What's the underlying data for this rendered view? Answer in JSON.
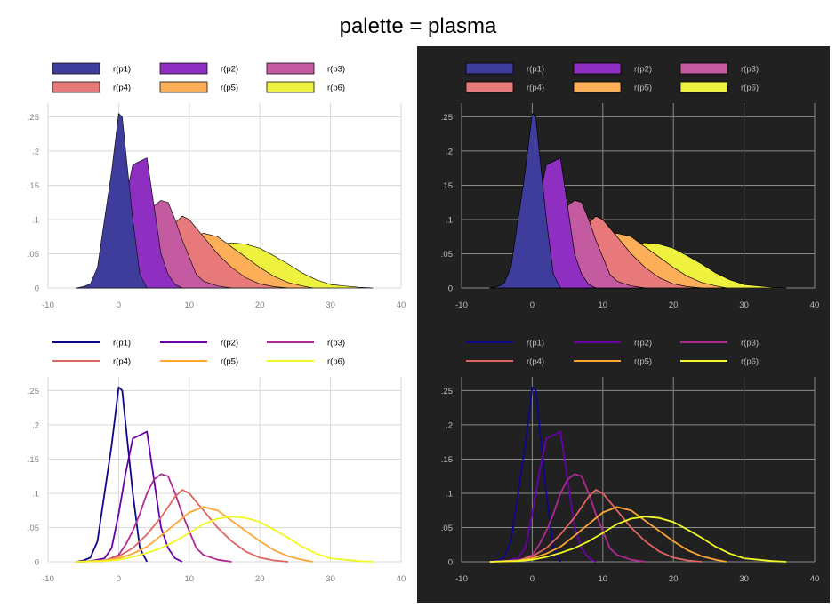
{
  "title": "palette = plasma",
  "themes": {
    "light": {
      "bg": "#ffffff",
      "grid": "#d9d9d9",
      "tick_text": "#808080",
      "legend_text": "#000000",
      "fill_stroke": "#111111"
    },
    "dark": {
      "bg": "#212121",
      "grid": "#8a8a8a",
      "tick_text": "#bdbdbd",
      "legend_text": "#bdbdbd",
      "fill_stroke": "#000000"
    }
  },
  "chart_data": [
    {
      "panel": "top-left",
      "type": "area",
      "theme": "light",
      "legend_style": "box",
      "legend_position": "top",
      "xlim": [
        -10,
        40
      ],
      "ylim": [
        0,
        0.27
      ],
      "xticks": [
        -10,
        0,
        10,
        20,
        30,
        40
      ],
      "xtick_labels": [
        "-10",
        "0",
        "10",
        "20",
        "30",
        "40"
      ],
      "yticks": [
        0,
        0.05,
        0.1,
        0.15,
        0.2,
        0.25
      ],
      "ytick_labels": [
        "0",
        ".05",
        ".1",
        ".15",
        ".2",
        ".25"
      ],
      "grid": true,
      "series": "shared"
    },
    {
      "panel": "top-right",
      "type": "area",
      "theme": "dark",
      "legend_style": "box",
      "legend_position": "top",
      "xlim": [
        -10,
        40
      ],
      "ylim": [
        0,
        0.27
      ],
      "xticks": [
        -10,
        0,
        10,
        20,
        30,
        40
      ],
      "xtick_labels": [
        "-10",
        "0",
        "10",
        "20",
        "30",
        "40"
      ],
      "yticks": [
        0,
        0.05,
        0.1,
        0.15,
        0.2,
        0.25
      ],
      "ytick_labels": [
        "0",
        ".05",
        ".1",
        ".15",
        ".2",
        ".25"
      ],
      "grid": true,
      "series": "shared"
    },
    {
      "panel": "bottom-left",
      "type": "line",
      "theme": "light",
      "legend_style": "line",
      "legend_position": "top",
      "xlim": [
        -10,
        40
      ],
      "ylim": [
        0,
        0.27
      ],
      "xticks": [
        -10,
        0,
        10,
        20,
        30,
        40
      ],
      "xtick_labels": [
        "-10",
        "0",
        "10",
        "20",
        "30",
        "40"
      ],
      "yticks": [
        0,
        0.05,
        0.1,
        0.15,
        0.2,
        0.25
      ],
      "ytick_labels": [
        "0",
        ".05",
        ".1",
        ".15",
        ".2",
        ".25"
      ],
      "grid": true,
      "series": "shared"
    },
    {
      "panel": "bottom-right",
      "type": "line",
      "theme": "dark",
      "legend_style": "line",
      "legend_position": "top",
      "xlim": [
        -10,
        40
      ],
      "ylim": [
        0,
        0.27
      ],
      "xticks": [
        -10,
        0,
        10,
        20,
        30,
        40
      ],
      "xtick_labels": [
        "-10",
        "0",
        "10",
        "20",
        "30",
        "40"
      ],
      "yticks": [
        0,
        0.05,
        0.1,
        0.15,
        0.2,
        0.25
      ],
      "ytick_labels": [
        "0",
        ".05",
        ".1",
        ".15",
        ".2",
        ".25"
      ],
      "grid": true,
      "series": "shared"
    }
  ],
  "series": [
    {
      "name": "r(p1)",
      "fill": "#3f3d9c",
      "line": "#0d0887",
      "x": [
        -6,
        -5,
        -4,
        -3,
        -2,
        -1,
        0,
        0.5,
        1,
        2,
        3,
        4
      ],
      "y": [
        0,
        0.002,
        0.006,
        0.03,
        0.1,
        0.17,
        0.255,
        0.25,
        0.2,
        0.1,
        0.02,
        0
      ]
    },
    {
      "name": "r(p2)",
      "fill": "#8e2fc2",
      "line": "#6a00a8",
      "x": [
        -6,
        -4,
        -2,
        -1,
        0,
        1,
        2,
        3,
        4,
        5,
        6,
        7,
        8,
        9
      ],
      "y": [
        0,
        0.001,
        0.005,
        0.02,
        0.07,
        0.13,
        0.18,
        0.185,
        0.19,
        0.12,
        0.05,
        0.02,
        0.005,
        0
      ]
    },
    {
      "name": "r(p3)",
      "fill": "#c45aa0",
      "line": "#b12a90",
      "x": [
        -6,
        -2,
        0,
        1,
        2,
        3,
        4,
        5,
        6,
        7,
        8,
        9,
        10,
        11,
        12,
        14,
        16
      ],
      "y": [
        0,
        0.001,
        0.01,
        0.025,
        0.045,
        0.07,
        0.1,
        0.12,
        0.128,
        0.125,
        0.1,
        0.07,
        0.045,
        0.02,
        0.01,
        0.003,
        0
      ]
    },
    {
      "name": "r(p4)",
      "fill": "#e8797a",
      "line": "#e16462",
      "x": [
        -6,
        -2,
        0,
        2,
        4,
        6,
        7,
        8,
        9,
        10,
        12,
        14,
        16,
        18,
        20,
        22,
        24
      ],
      "y": [
        0,
        0.002,
        0.008,
        0.02,
        0.04,
        0.065,
        0.08,
        0.095,
        0.105,
        0.1,
        0.075,
        0.05,
        0.03,
        0.015,
        0.006,
        0.002,
        0
      ]
    },
    {
      "name": "r(p5)",
      "fill": "#fcae58",
      "line": "#fca636",
      "x": [
        -6,
        -2,
        0,
        2,
        4,
        6,
        8,
        10,
        12,
        14,
        16,
        18,
        20,
        22,
        24,
        26,
        27.5
      ],
      "y": [
        0,
        0.002,
        0.005,
        0.012,
        0.022,
        0.038,
        0.055,
        0.072,
        0.08,
        0.075,
        0.06,
        0.045,
        0.03,
        0.017,
        0.008,
        0.003,
        0
      ]
    },
    {
      "name": "r(p6)",
      "fill": "#eef23e",
      "line": "#f0f921",
      "x": [
        -6,
        -2,
        0,
        2,
        4,
        6,
        8,
        10,
        12,
        14,
        16,
        18,
        20,
        22,
        24,
        26,
        28,
        30,
        32,
        34,
        36
      ],
      "y": [
        0,
        0.001,
        0.003,
        0.007,
        0.013,
        0.02,
        0.03,
        0.042,
        0.055,
        0.063,
        0.066,
        0.064,
        0.058,
        0.047,
        0.035,
        0.022,
        0.012,
        0.005,
        0.003,
        0.001,
        0
      ]
    }
  ]
}
